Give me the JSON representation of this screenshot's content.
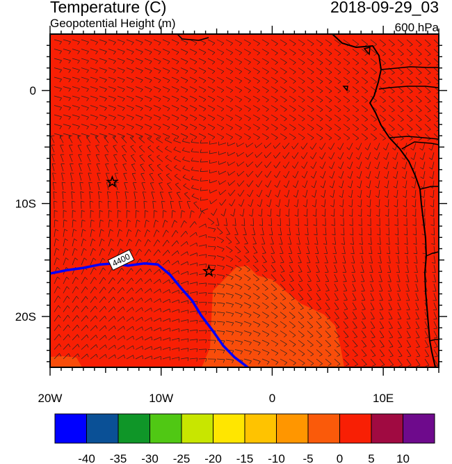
{
  "header": {
    "title": "Temperature (C)",
    "subtitle": "Geopotential Height (m)",
    "datetime": "2018-09-29_03",
    "level": "600 hPa"
  },
  "map": {
    "lon_range": [
      -20,
      15
    ],
    "lat_range": [
      -24.5,
      5
    ],
    "x_ticks": [
      {
        "lon": -20,
        "label": "20W"
      },
      {
        "lon": -10,
        "label": "10W"
      },
      {
        "lon": 0,
        "label": "0"
      },
      {
        "lon": 10,
        "label": "10E"
      }
    ],
    "y_ticks": [
      {
        "lat": 0,
        "label": "0"
      },
      {
        "lat": -10,
        "label": "10S"
      },
      {
        "lat": -20,
        "label": "20S"
      }
    ],
    "contour": {
      "label": "4400",
      "color": "#0000ff",
      "path": [
        [
          -20,
          -16.2
        ],
        [
          -18.5,
          -15.9
        ],
        [
          -17,
          -15.7
        ],
        [
          -15.5,
          -15.4
        ],
        [
          -14.2,
          -15.3
        ],
        [
          -13,
          -15.5
        ],
        [
          -11.5,
          -15.3
        ],
        [
          -10.3,
          -15.4
        ],
        [
          -9.2,
          -16.3
        ],
        [
          -8.2,
          -17.5
        ],
        [
          -7.2,
          -18.6
        ],
        [
          -6.4,
          -19.9
        ],
        [
          -5.4,
          -21.2
        ],
        [
          -4.4,
          -22.6
        ],
        [
          -3.4,
          -23.6
        ],
        [
          -2.2,
          -24.5
        ]
      ]
    },
    "stars": [
      [
        -14.4,
        -8.1
      ],
      [
        -5.7,
        -16
      ]
    ],
    "background_color": "#f81f04",
    "warm_region_color": "#f94d0a"
  },
  "colorbar": {
    "labels": [
      "-40",
      "-35",
      "-30",
      "-25",
      "-20",
      "-15",
      "-10",
      "-5",
      "0",
      "5",
      "10"
    ],
    "colors": [
      "#0000ff",
      "#0a5096",
      "#0f9628",
      "#50c814",
      "#c8e600",
      "#ffe600",
      "#ffc300",
      "#ff9600",
      "#fa5a0a",
      "#f81f04",
      "#a00a41",
      "#6e0a8c"
    ]
  }
}
